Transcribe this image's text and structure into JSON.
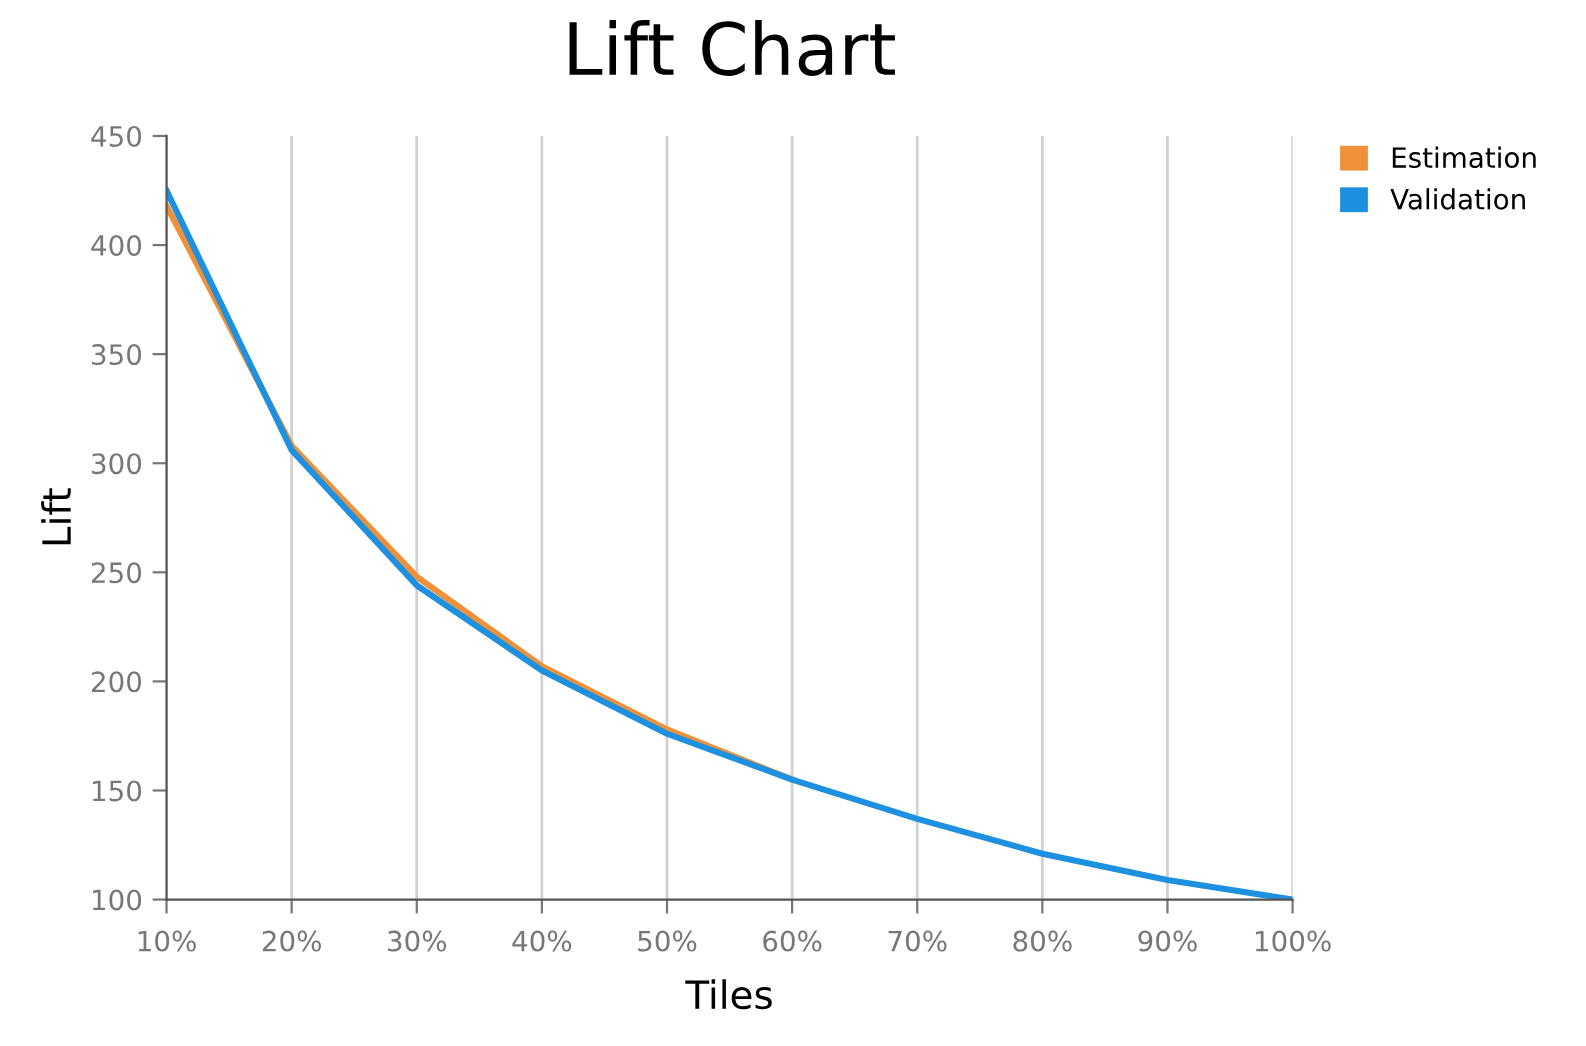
{
  "chart_data": {
    "type": "line",
    "title": "Lift Chart",
    "xlabel": "Tiles",
    "ylabel": "Lift",
    "categories": [
      "10%",
      "20%",
      "30%",
      "40%",
      "50%",
      "60%",
      "70%",
      "80%",
      "90%",
      "100%"
    ],
    "series": [
      {
        "name": "Estimation",
        "color": "#f0913a",
        "values": [
          418,
          308,
          248,
          207,
          178,
          155,
          null,
          null,
          null,
          null
        ]
      },
      {
        "name": "Validation",
        "color": "#1e90e0",
        "values": [
          425,
          306,
          244,
          205,
          176,
          155,
          137,
          121,
          109,
          100
        ]
      }
    ],
    "ylim": [
      100,
      450
    ],
    "yticks": [
      100,
      150,
      200,
      250,
      300,
      350,
      400,
      450
    ],
    "grid": "x",
    "legend": "top right",
    "marker": "none",
    "line_style": "solid"
  }
}
